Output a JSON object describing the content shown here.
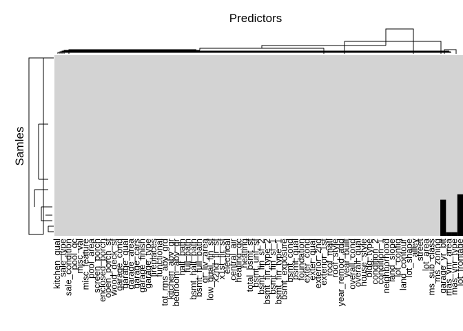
{
  "chart_data": {
    "type": "heatmap",
    "title": "Predictors",
    "xlabel": "",
    "ylabel": "Samles",
    "colors": {
      "present": "#d3d3d3",
      "missing": "#000000",
      "dendrogram": "#000000"
    },
    "dendrograms": {
      "rows": true,
      "columns": true
    },
    "legend": "none",
    "columns": [
      "kitchen_qual",
      "sale_type",
      "sale_condition",
      "pool_qc",
      "misc_val",
      "misc_feature",
      "pool_area",
      "screen_porch",
      "enclosed_porch",
      "open_porch_sf",
      "wood_deck_sf",
      "garage_cond",
      "garage_qual",
      "garage_area",
      "garage_cars",
      "garage_finish",
      "garage_type",
      "fireplaces",
      "functional",
      "tot_rms_abv_grd",
      "kitchen_abv_gr",
      "bedroom_abv_gr",
      "half_bath",
      "full_bath",
      "bsmt_half_bath",
      "bsmt_full_bath",
      "gr_liv_area",
      "low_qual_fin_sf",
      "x2nd_flr_sf",
      "x1st_flr_sf",
      "electrical",
      "central_air",
      "heating_qc",
      "heating",
      "total_bsmt_sf",
      "bsmt_unf_sf",
      "bsmt_fin_sf_2",
      "bsmt_fin_type_2",
      "bsmt_fin_sf_1",
      "bsmt_fin_type_1",
      "bsmt_exposure",
      "bsmt_cond",
      "bsmt_qual",
      "foundation",
      "exter_cond",
      "exter_qual",
      "exterior_2nd",
      "exterior_1st",
      "roof_matl",
      "roof_style",
      "year_remod_add",
      "year_built",
      "overall_cond",
      "overall_qual",
      "house_style",
      "bldg_type",
      "condition_2",
      "condition_1",
      "neighborhood",
      "land_slope",
      "lot_config",
      "land_contour",
      "lot_shape",
      "alley",
      "street",
      "lot_area",
      "ms_sub_class",
      "ms_zoning",
      "garage_yr_blt",
      "mas_vnr_area",
      "mas_vnr_type",
      "lot_frontage"
    ],
    "missing_cells": [
      {
        "column": "garage_yr_blt",
        "rows": "lower block"
      },
      {
        "column": "mas_vnr_area",
        "rows": "small lower block"
      },
      {
        "column": "mas_vnr_type",
        "rows": "small lower block"
      },
      {
        "column": "lot_frontage",
        "rows": "lower block"
      }
    ]
  }
}
